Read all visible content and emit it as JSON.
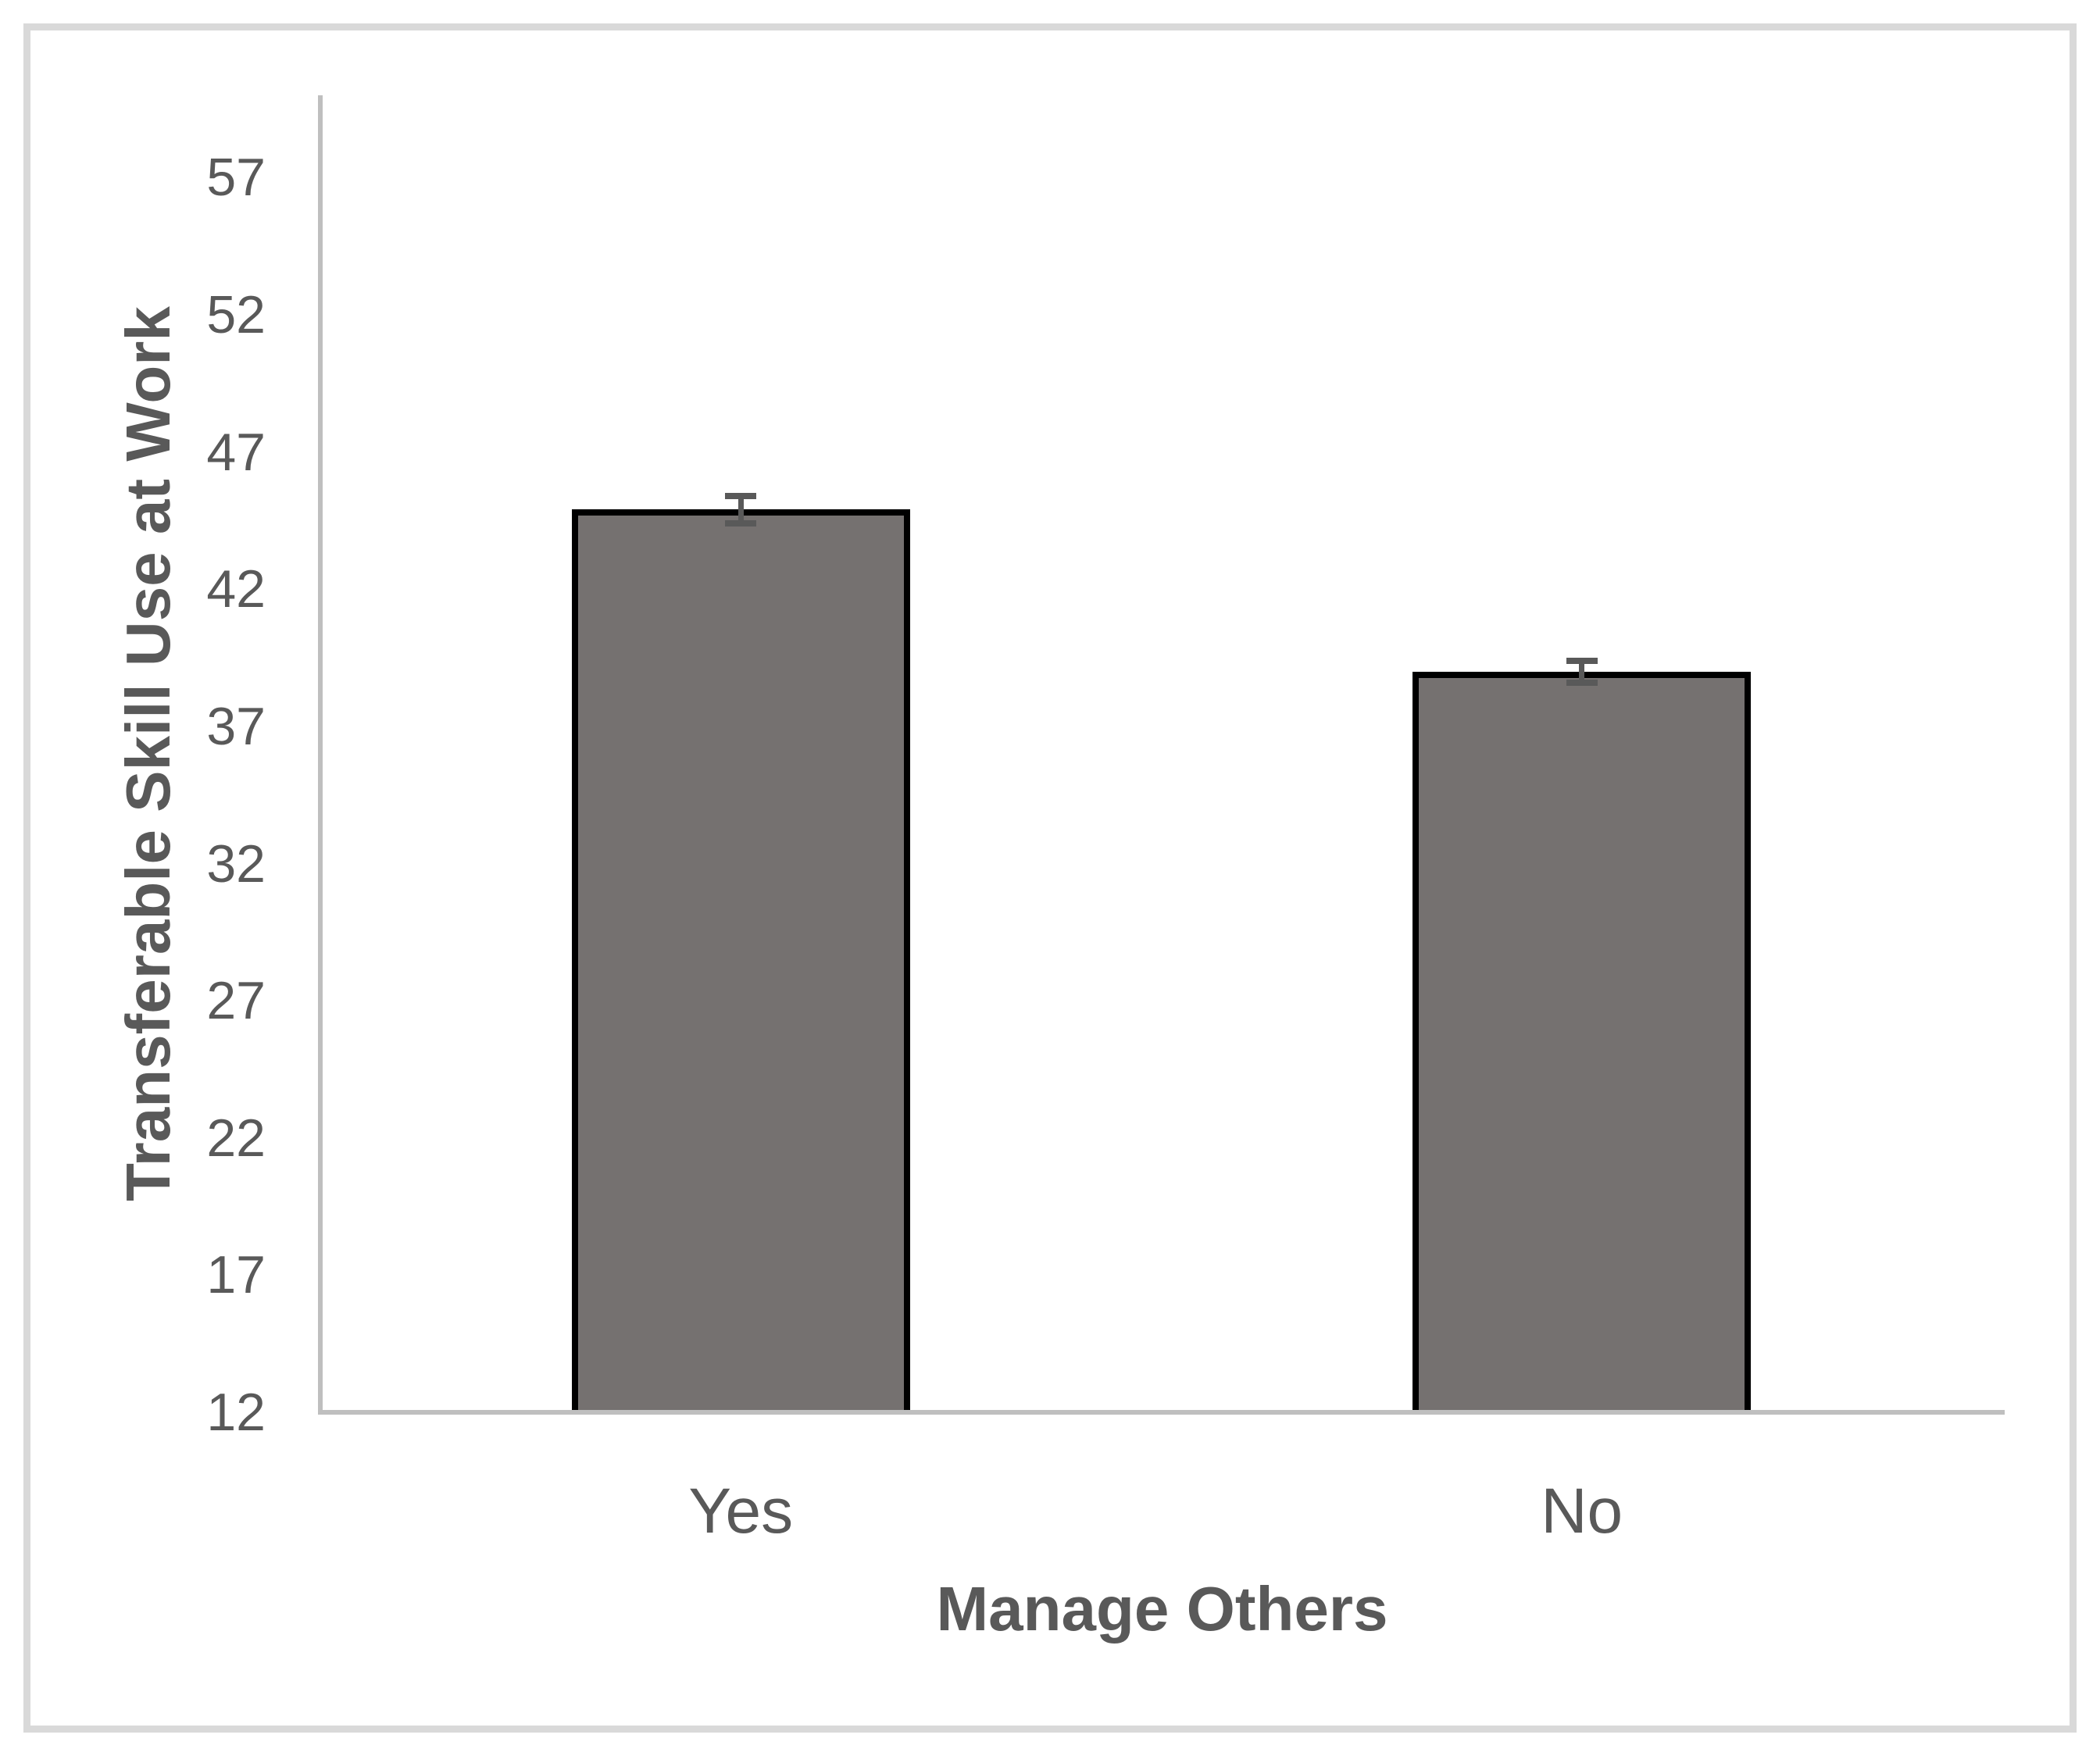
{
  "figure": {
    "y_axis_title": "Transferable Skill Use at Work",
    "x_axis_title": "Manage Others"
  },
  "chart_data": {
    "type": "bar",
    "title": "",
    "categories": [
      "Yes",
      "No"
    ],
    "values": [
      44.9,
      39.0
    ],
    "error_bars": [
      0.5,
      0.4
    ],
    "xlabel": "Manage Others",
    "ylabel": "Transferable Skill Use at Work",
    "ylim": [
      12,
      60
    ],
    "yticks": [
      12,
      17,
      22,
      27,
      32,
      37,
      42,
      47,
      52,
      57
    ],
    "grid": false,
    "legend": false,
    "colors": {
      "bar_fill": "#757170",
      "bar_border": "#000000",
      "error_bar": "#595959",
      "axis_line": "#BFBFBF",
      "text": "#595959",
      "frame": "#D9D9D9"
    }
  }
}
